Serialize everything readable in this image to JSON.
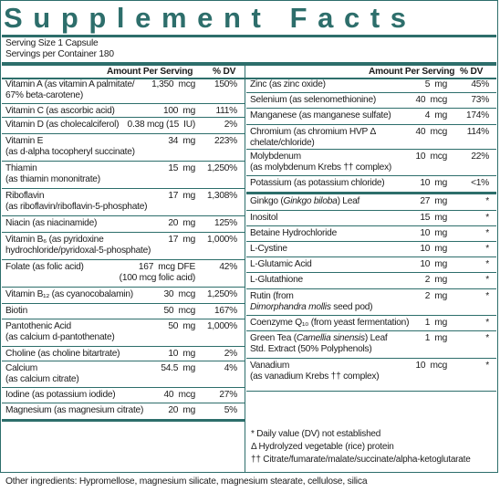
{
  "title": "Supplement Facts",
  "serving_size": "Serving Size 1 Capsule",
  "servings_per_container": "Servings per Container 180",
  "left_header": {
    "amount": "Amount Per Serving",
    "dv": "% DV"
  },
  "right_header": {
    "amount": "Amount Per Serving",
    "dv": "% DV"
  },
  "left_rows": [
    {
      "name": "Vitamin A (as vitamin A palmitate/",
      "name2": "67% beta-carotene)",
      "amount": "1,350  mcg",
      "dv": "150%"
    },
    {
      "name": "Vitamin C (as ascorbic acid)",
      "name2": "",
      "amount": "100  mg",
      "dv": "111%"
    },
    {
      "name": "Vitamin D (as cholecalciferol)",
      "name2": "",
      "amount": "0.38 mcg (15  IU)",
      "dv": "2%"
    },
    {
      "name": "Vitamin E",
      "name2": "(as d-alpha tocopheryl succinate)",
      "amount": "34  mg",
      "dv": "223%"
    },
    {
      "name": "Thiamin",
      "name2": "(as thiamin mononitrate)",
      "amount": "15  mg",
      "dv": "1,250%"
    },
    {
      "name": "Riboflavin",
      "name2": "(as riboflavin/riboflavin-5-phosphate)",
      "amount": "17  mg",
      "dv": "1,308%"
    },
    {
      "name": "Niacin (as niacinamide)",
      "name2": "",
      "amount": "20  mg",
      "dv": "125%"
    },
    {
      "name": "Vitamin B₆ (as pyridoxine",
      "name2": "hydrochloride/pyridoxal-5-phosphate)",
      "amount": "17  mg",
      "dv": "1,000%"
    },
    {
      "name": "Folate (as folic acid)",
      "name2": "",
      "amount": "167  mcg DFE",
      "amount2": "(100 mcg folic acid)",
      "dv": "42%"
    },
    {
      "name": "Vitamin B₁₂ (as cyanocobalamin)",
      "name2": "",
      "amount": "30  mcg",
      "dv": "1,250%"
    },
    {
      "name": "Biotin",
      "name2": "",
      "amount": "50  mcg",
      "dv": "167%"
    },
    {
      "name": "Pantothenic Acid",
      "name2": "(as calcium d-pantothenate)",
      "amount": "50  mg",
      "dv": "1,000%"
    },
    {
      "name": "Choline (as choline bitartrate)",
      "name2": "",
      "amount": "10  mg",
      "dv": "2%"
    },
    {
      "name": "Calcium",
      "name2": "(as calcium citrate)",
      "amount": "54.5  mg",
      "dv": "4%"
    },
    {
      "name": "Iodine (as potassium iodide)",
      "name2": "",
      "amount": "40  mcg",
      "dv": "27%"
    },
    {
      "name": "Magnesium (as magnesium citrate)",
      "name2": "",
      "amount": "20  mg",
      "dv": "5%"
    }
  ],
  "right_rows": [
    {
      "name": "Zinc (as zinc oxide)",
      "name2": "",
      "amount": "5  mg",
      "dv": "45%"
    },
    {
      "name": "Selenium (as selenomethionine)",
      "name2": "",
      "amount": "40  mcg",
      "dv": "73%"
    },
    {
      "name": "Manganese (as manganese sulfate)",
      "name2": "",
      "amount": "4  mg",
      "dv": "174%"
    },
    {
      "name": "Chromium (as chromium HVP Δ",
      "name2": "chelate/chloride)",
      "amount": "40  mcg",
      "dv": "114%"
    },
    {
      "name": "Molybdenum",
      "name2": "(as molybdenum Krebs †† complex)",
      "amount": "10  mcg",
      "dv": "22%"
    },
    {
      "name": "Potassium (as potassium chloride)",
      "name2": "",
      "amount": "10  mg",
      "dv": "<1%"
    },
    {
      "name": "Ginkgo (Ginkgo biloba) Leaf",
      "name2": "",
      "amount": "27  mg",
      "dv": "*"
    },
    {
      "name": "Inositol",
      "name2": "",
      "amount": "15  mg",
      "dv": "*"
    },
    {
      "name": "Betaine Hydrochloride",
      "name2": "",
      "amount": "10  mg",
      "dv": "*"
    },
    {
      "name": "L-Cystine",
      "name2": "",
      "amount": "10  mg",
      "dv": "*"
    },
    {
      "name": "L-Glutamic Acid",
      "name2": "",
      "amount": "10  mg",
      "dv": "*"
    },
    {
      "name": "L-Glutathione",
      "name2": "",
      "amount": "2  mg",
      "dv": "*"
    },
    {
      "name": "Rutin (from",
      "name2": "Dimorphandra mollis seed pod)",
      "amount": "2  mg",
      "dv": "*"
    },
    {
      "name": "Coenzyme Q₁₀ (from yeast fermentation)",
      "name2": "",
      "amount": "1  mg",
      "dv": "*"
    },
    {
      "name": "Green Tea (Camellia sinensis) Leaf",
      "name2": "Std. Extract (50% Polyphenols)",
      "amount": "1  mg",
      "dv": "*"
    },
    {
      "name": "Vanadium",
      "name2": "(as vanadium Krebs †† complex)",
      "amount": "10  mcg",
      "dv": "*"
    }
  ],
  "footnotes": [
    "* Daily value (DV) not established",
    "Δ Hydrolyzed vegetable (rice) protein",
    "†† Citrate/fumarate/malate/succinate/alpha-ketoglutarate"
  ],
  "other_ingredients": "Other ingredients: Hypromellose, magnesium silicate, magnesium stearate, cellulose, silica",
  "colors": {
    "accent": "#2d6e6b",
    "text": "#1c1c1c"
  }
}
